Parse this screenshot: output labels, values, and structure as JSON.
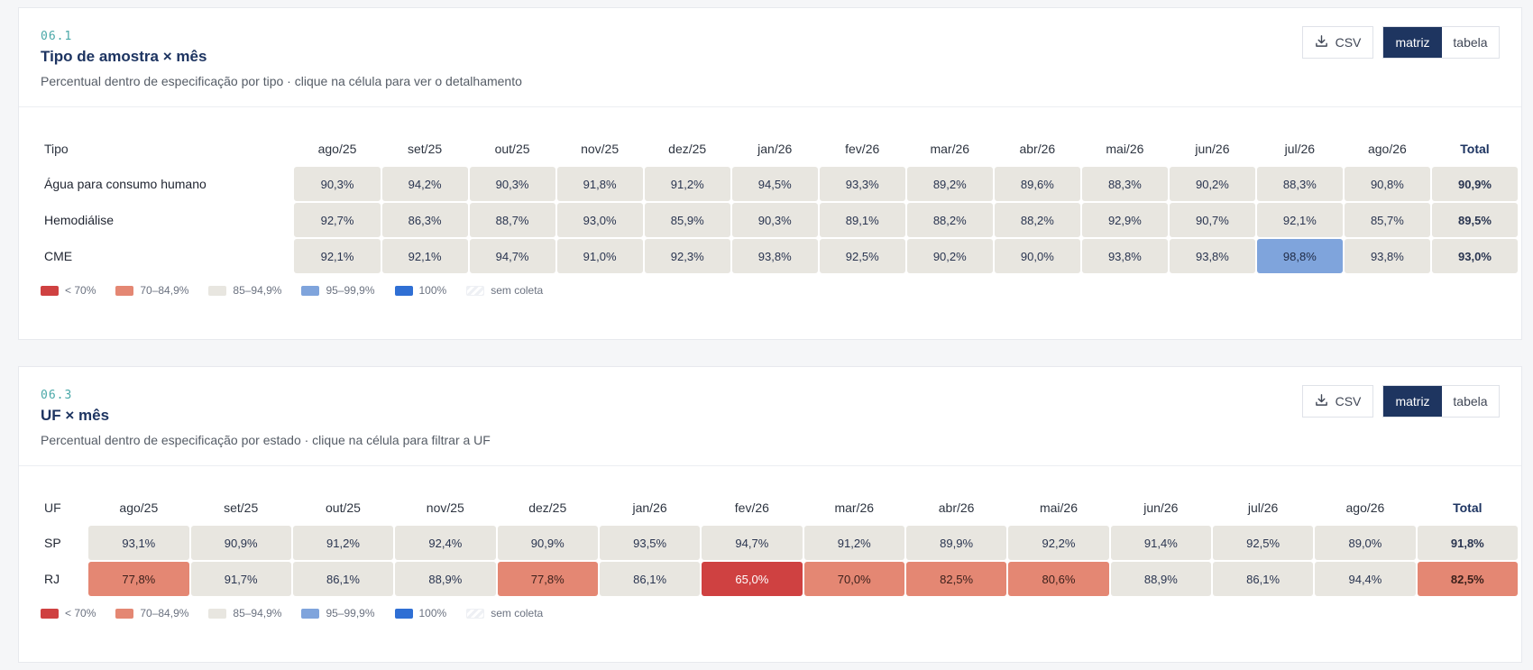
{
  "palette": {
    "lt70": "#cf4141",
    "70_85": "#e48773",
    "85_95": "#e8e6e0",
    "95_100": "#7fa4dc",
    "100": "#2f6fd4",
    "none": "#f1f2f5"
  },
  "legend": [
    "< 70%",
    "70–84,9%",
    "85–94,9%",
    "95–99,9%",
    "100%",
    "sem coleta"
  ],
  "actions": {
    "csv": "CSV",
    "matrix": "matriz",
    "table": "tabela",
    "download_icon": "download-icon"
  },
  "chart_data": [
    {
      "type": "heatmap",
      "code": "06.1",
      "title": "Tipo de amostra × mês",
      "subtitle": "Percentual dentro de especificação por tipo · clique na célula para ver o detalhamento",
      "row_header": "Tipo",
      "total_header": "Total",
      "months": [
        "ago/25",
        "set/25",
        "out/25",
        "nov/25",
        "dez/25",
        "jan/26",
        "fev/26",
        "mar/26",
        "abr/26",
        "mai/26",
        "jun/26",
        "jul/26",
        "ago/26"
      ],
      "rows": [
        {
          "label": "Água para consumo humano",
          "values": [
            90.3,
            94.2,
            90.3,
            91.8,
            91.2,
            94.5,
            93.3,
            89.2,
            89.6,
            88.3,
            90.2,
            88.3,
            90.8
          ],
          "total": 90.9
        },
        {
          "label": "Hemodiálise",
          "values": [
            92.7,
            86.3,
            88.7,
            93.0,
            85.9,
            90.3,
            89.1,
            88.2,
            88.2,
            92.9,
            90.7,
            92.1,
            85.7
          ],
          "total": 89.5
        },
        {
          "label": "CME",
          "values": [
            92.1,
            92.1,
            94.7,
            91.0,
            92.3,
            93.8,
            92.5,
            90.2,
            90.0,
            93.8,
            93.8,
            98.8,
            93.8
          ],
          "total": 93.0
        }
      ]
    },
    {
      "type": "heatmap",
      "code": "06.3",
      "title": "UF × mês",
      "subtitle": "Percentual dentro de especificação por estado · clique na célula para filtrar a UF",
      "row_header": "UF",
      "total_header": "Total",
      "months": [
        "ago/25",
        "set/25",
        "out/25",
        "nov/25",
        "dez/25",
        "jan/26",
        "fev/26",
        "mar/26",
        "abr/26",
        "mai/26",
        "jun/26",
        "jul/26",
        "ago/26"
      ],
      "rows": [
        {
          "label": "SP",
          "values": [
            93.1,
            90.9,
            91.2,
            92.4,
            90.9,
            93.5,
            94.7,
            91.2,
            89.9,
            92.2,
            91.4,
            92.5,
            89.0
          ],
          "total": 91.8
        },
        {
          "label": "RJ",
          "values": [
            77.8,
            91.7,
            86.1,
            88.9,
            77.8,
            86.1,
            65.0,
            70.0,
            82.5,
            80.6,
            88.9,
            86.1,
            94.4
          ],
          "total": 82.5
        }
      ]
    }
  ]
}
